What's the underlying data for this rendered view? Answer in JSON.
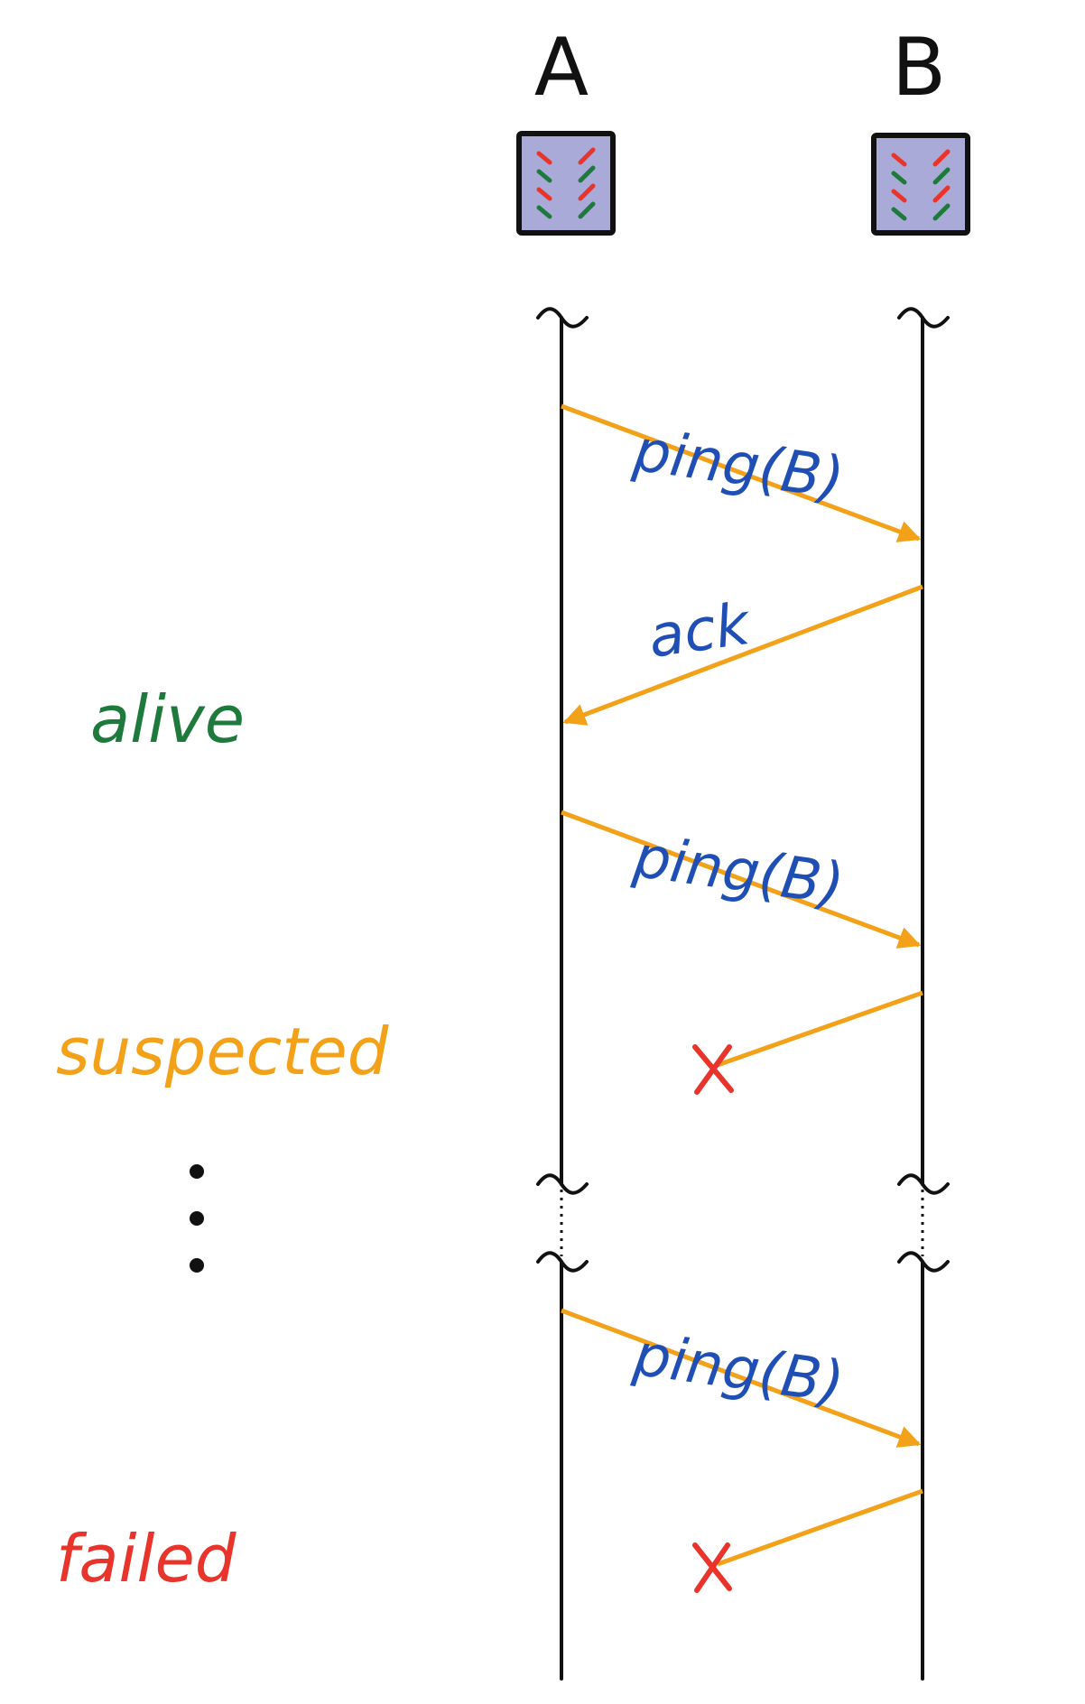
{
  "nodes": [
    {
      "id": "A",
      "label": "A"
    },
    {
      "id": "B",
      "label": "B"
    }
  ],
  "messages": [
    {
      "from": "A",
      "to": "B",
      "label": "ping(B)",
      "delivered": true
    },
    {
      "from": "B",
      "to": "A",
      "label": "ack",
      "delivered": true
    },
    {
      "from": "A",
      "to": "B",
      "label": "ping(B)",
      "delivered": true
    },
    {
      "from": "B",
      "to": "A",
      "label": "",
      "delivered": false
    },
    {
      "from": "A",
      "to": "B",
      "label": "ping(B)",
      "delivered": true
    },
    {
      "from": "B",
      "to": "A",
      "label": "",
      "delivered": false
    }
  ],
  "states": {
    "alive": "alive",
    "suspected": "suspected",
    "failed": "failed"
  },
  "colors": {
    "line": "#111111",
    "arrow": "#f4a11a",
    "message_text": "#1f4fb5",
    "alive": "#1e7a3c",
    "suspected": "#f4a11a",
    "failed": "#e8342a",
    "lost": "#e8342a",
    "node_fill": "#aaaad8",
    "dash_red": "#e8342a",
    "dash_green": "#1e7a3c"
  },
  "icons": {
    "node": "server-icon",
    "lost": "cross-icon",
    "break": "timeline-break-icon",
    "ellipsis": "vertical-ellipsis-icon"
  }
}
